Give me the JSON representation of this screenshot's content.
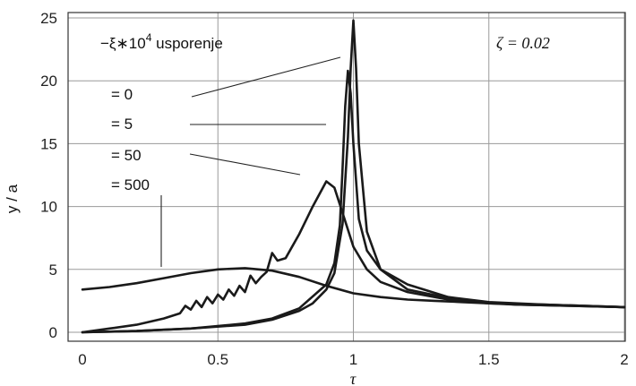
{
  "chart_data": {
    "type": "line",
    "title": "",
    "xlabel": "τ",
    "ylabel": "y / a",
    "xlim": [
      0,
      2
    ],
    "ylim": [
      0,
      25
    ],
    "xticks": [
      0,
      0.5,
      1,
      1.5,
      2
    ],
    "xtick_labels": [
      "0",
      "0.5",
      "1",
      "1.5",
      "2"
    ],
    "yticks": [
      0,
      5,
      10,
      15,
      20,
      25
    ],
    "ytick_labels": [
      "0",
      "5",
      "10",
      "15",
      "20",
      "25"
    ],
    "grid": true,
    "legend": {
      "header_prefix": "−ξ∗10",
      "header_exp": "4",
      "header_suffix": " usporenje",
      "entries": [
        "= 0",
        "= 5",
        "= 50",
        "= 500"
      ],
      "placement": "top-left"
    },
    "annotation": {
      "text": "ζ = 0.02",
      "x": 1.6,
      "y": 23.1
    },
    "series": [
      {
        "x": [
          0,
          0.2,
          0.4,
          0.6,
          0.7,
          0.8,
          0.85,
          0.9,
          0.93,
          0.96,
          0.98,
          0.99,
          1.0,
          1.01,
          1.02,
          1.05,
          1.1,
          1.2,
          1.4,
          1.6,
          1.8,
          2.0
        ],
        "y": [
          0.0,
          0.1,
          0.3,
          0.6,
          1.0,
          1.7,
          2.3,
          3.4,
          4.7,
          8.6,
          15.5,
          21.0,
          24.8,
          21.0,
          15.0,
          8.0,
          5.0,
          3.4,
          2.5,
          2.2,
          2.1,
          2.0
        ]
      },
      {
        "x": [
          0,
          0.2,
          0.4,
          0.6,
          0.7,
          0.8,
          0.9,
          0.93,
          0.95,
          0.96,
          0.97,
          0.98,
          0.99,
          1.0,
          1.02,
          1.05,
          1.1,
          1.2,
          1.35,
          1.5,
          1.7,
          2.0
        ],
        "y": [
          0.0,
          0.1,
          0.3,
          0.7,
          1.1,
          1.9,
          3.8,
          5.5,
          8.5,
          13.0,
          18.0,
          20.8,
          19.0,
          15.0,
          9.0,
          6.5,
          5.0,
          3.8,
          2.8,
          2.4,
          2.2,
          2.0
        ]
      },
      {
        "x": [
          0,
          0.1,
          0.2,
          0.3,
          0.36,
          0.38,
          0.4,
          0.42,
          0.44,
          0.46,
          0.48,
          0.5,
          0.52,
          0.54,
          0.56,
          0.58,
          0.6,
          0.62,
          0.64,
          0.66,
          0.68,
          0.7,
          0.72,
          0.75,
          0.8,
          0.85,
          0.9,
          0.93,
          0.96,
          1.0,
          1.05,
          1.1,
          1.2,
          1.35,
          1.5,
          1.7,
          2.0
        ],
        "y": [
          0.0,
          0.3,
          0.6,
          1.1,
          1.5,
          2.1,
          1.8,
          2.5,
          2.0,
          2.8,
          2.3,
          3.0,
          2.6,
          3.4,
          2.9,
          3.7,
          3.2,
          4.5,
          3.9,
          4.4,
          4.8,
          6.3,
          5.7,
          5.9,
          7.8,
          10.0,
          12.0,
          11.5,
          9.5,
          6.8,
          5.0,
          4.0,
          3.2,
          2.6,
          2.3,
          2.2,
          2.0
        ]
      },
      {
        "x": [
          0,
          0.1,
          0.2,
          0.3,
          0.4,
          0.5,
          0.6,
          0.7,
          0.8,
          0.9,
          1.0,
          1.1,
          1.2,
          1.3,
          1.4,
          1.5,
          1.6,
          1.8,
          2.0
        ],
        "y": [
          3.4,
          3.6,
          3.9,
          4.3,
          4.7,
          5.0,
          5.1,
          4.9,
          4.4,
          3.7,
          3.1,
          2.8,
          2.6,
          2.5,
          2.4,
          2.3,
          2.2,
          2.1,
          2.0
        ]
      }
    ]
  }
}
